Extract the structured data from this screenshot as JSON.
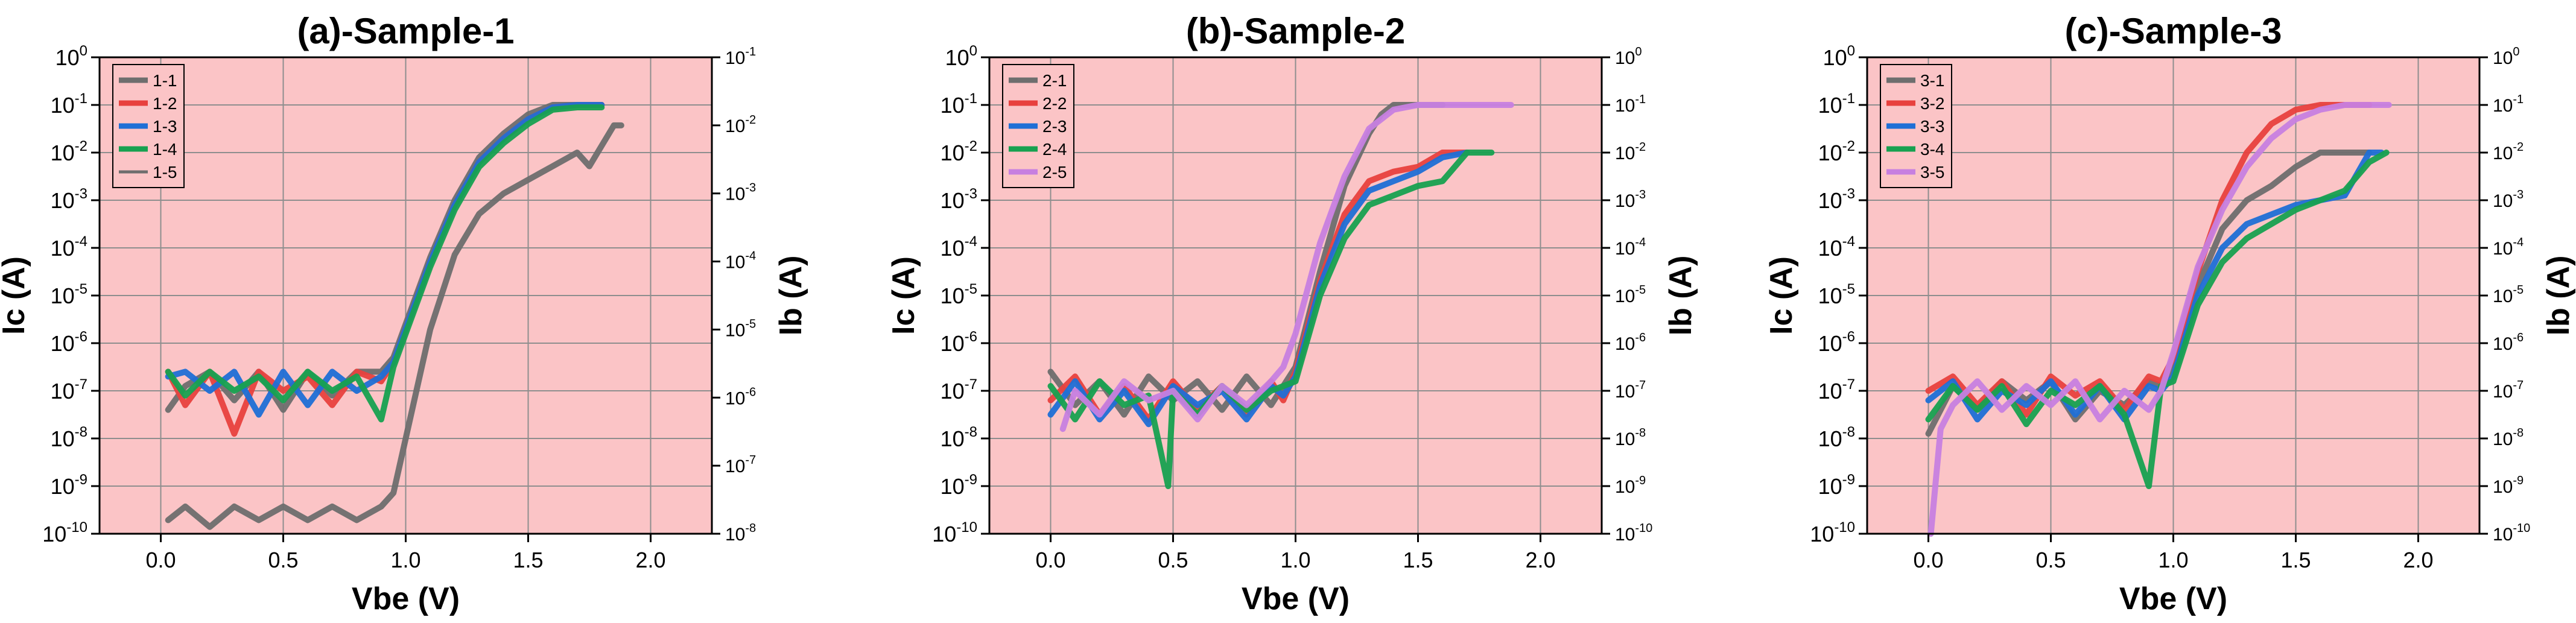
{
  "figure": {
    "panels": [
      "(a)-Sample-1",
      "(b)-Sample-2",
      "(c)-Sample-3"
    ]
  },
  "chart_data": [
    {
      "type": "line",
      "title": "(a)-Sample-1",
      "xlabel": "Vbe (V)",
      "ylabel": "Ic (A)",
      "y2label": "Ib (A)",
      "xlim": [
        -0.25,
        2.25
      ],
      "xticks": [
        "0.0",
        "0.5",
        "1.0",
        "1.5",
        "2.0"
      ],
      "xtick_values": [
        0,
        0.5,
        1.0,
        1.5,
        2.0
      ],
      "ylim_exp": [
        -10,
        0
      ],
      "y2lim_exp": [
        -8,
        -1
      ],
      "yscale": "log",
      "grid": true,
      "legend_position": "top-left",
      "background_color": "#fbc4c6",
      "series": [
        {
          "name": "1-1",
          "axis": "left",
          "color": "#6e6e6e",
          "x": [
            0.03,
            0.1,
            0.2,
            0.3,
            0.4,
            0.5,
            0.6,
            0.7,
            0.8,
            0.9,
            0.95,
            1.0,
            1.1,
            1.2,
            1.3,
            1.4,
            1.5,
            1.6,
            1.7,
            1.8
          ],
          "y_exp": [
            -7.4,
            -6.9,
            -6.6,
            -7.2,
            -6.6,
            -7.4,
            -6.6,
            -7.1,
            -6.6,
            -6.6,
            -6.3,
            -5.6,
            -4.2,
            -3.0,
            -2.1,
            -1.6,
            -1.2,
            -1.0,
            -1.0,
            -1.0
          ]
        },
        {
          "name": "1-2",
          "axis": "left",
          "color": "#e8413e",
          "x": [
            0.03,
            0.1,
            0.2,
            0.3,
            0.4,
            0.5,
            0.6,
            0.7,
            0.8,
            0.9,
            0.95,
            1.0,
            1.1,
            1.2,
            1.3,
            1.4,
            1.5,
            1.6,
            1.7,
            1.8
          ],
          "y_exp": [
            -6.6,
            -7.3,
            -6.6,
            -7.9,
            -6.6,
            -7.0,
            -6.7,
            -7.3,
            -6.6,
            -6.8,
            -6.4,
            -5.7,
            -4.3,
            -3.1,
            -2.2,
            -1.7,
            -1.3,
            -1.05,
            -1.0,
            -1.0
          ]
        },
        {
          "name": "1-3",
          "axis": "left",
          "color": "#1f6fd6",
          "x": [
            0.03,
            0.1,
            0.2,
            0.3,
            0.4,
            0.5,
            0.6,
            0.7,
            0.8,
            0.9,
            0.95,
            1.0,
            1.1,
            1.2,
            1.3,
            1.4,
            1.5,
            1.6,
            1.7,
            1.8
          ],
          "y_exp": [
            -6.7,
            -6.6,
            -7.0,
            -6.6,
            -7.5,
            -6.6,
            -7.3,
            -6.6,
            -7.0,
            -6.7,
            -6.4,
            -5.7,
            -4.3,
            -3.1,
            -2.2,
            -1.7,
            -1.3,
            -1.05,
            -1.0,
            -1.0
          ]
        },
        {
          "name": "1-4",
          "axis": "left",
          "color": "#17a150",
          "x": [
            0.03,
            0.1,
            0.2,
            0.3,
            0.4,
            0.5,
            0.6,
            0.7,
            0.8,
            0.9,
            0.95,
            1.0,
            1.1,
            1.2,
            1.3,
            1.4,
            1.5,
            1.6,
            1.7,
            1.8
          ],
          "y_exp": [
            -6.6,
            -7.1,
            -6.6,
            -7.0,
            -6.7,
            -7.2,
            -6.6,
            -7.0,
            -6.7,
            -7.6,
            -6.5,
            -5.8,
            -4.4,
            -3.2,
            -2.3,
            -1.8,
            -1.4,
            -1.1,
            -1.05,
            -1.05
          ]
        },
        {
          "name": "1-5",
          "axis": "right",
          "color": "#6e6e6e",
          "x": [
            0.03,
            0.1,
            0.2,
            0.3,
            0.4,
            0.5,
            0.6,
            0.7,
            0.8,
            0.9,
            0.95,
            1.0,
            1.1,
            1.2,
            1.3,
            1.4,
            1.5,
            1.6,
            1.7,
            1.75,
            1.8,
            1.85,
            1.88
          ],
          "y_exp": [
            -7.8,
            -7.6,
            -7.9,
            -7.6,
            -7.8,
            -7.6,
            -7.8,
            -7.6,
            -7.8,
            -7.6,
            -7.4,
            -6.6,
            -5.0,
            -3.9,
            -3.3,
            -3.0,
            -2.8,
            -2.6,
            -2.4,
            -2.6,
            -2.3,
            -2.0,
            -2.0
          ]
        }
      ]
    },
    {
      "type": "line",
      "title": "(b)-Sample-2",
      "xlabel": "Vbe (V)",
      "ylabel": "Ic (A)",
      "y2label": "Ib (A)",
      "xlim": [
        -0.25,
        2.25
      ],
      "xticks": [
        "0.0",
        "0.5",
        "1.0",
        "1.5",
        "2.0"
      ],
      "xtick_values": [
        0,
        0.5,
        1.0,
        1.5,
        2.0
      ],
      "ylim_exp": [
        -10,
        0
      ],
      "y2lim_exp": [
        -10,
        0
      ],
      "yscale": "log",
      "grid": true,
      "legend_position": "top-left",
      "background_color": "#fbc4c6",
      "series": [
        {
          "name": "2-1",
          "axis": "left",
          "color": "#6e6e6e",
          "x": [
            0.0,
            0.1,
            0.2,
            0.3,
            0.4,
            0.5,
            0.6,
            0.7,
            0.8,
            0.9,
            0.95,
            1.0,
            1.1,
            1.2,
            1.3,
            1.35,
            1.4,
            1.5,
            1.6
          ],
          "y_exp": [
            -6.6,
            -7.3,
            -6.8,
            -7.5,
            -6.7,
            -7.2,
            -6.8,
            -7.4,
            -6.7,
            -7.3,
            -6.9,
            -6.5,
            -4.5,
            -2.7,
            -1.6,
            -1.2,
            -1.0,
            -1.0,
            -1.0
          ]
        },
        {
          "name": "2-2",
          "axis": "left",
          "color": "#e8413e",
          "x": [
            0.0,
            0.1,
            0.2,
            0.3,
            0.4,
            0.5,
            0.6,
            0.7,
            0.8,
            0.9,
            0.95,
            1.0,
            1.1,
            1.2,
            1.3,
            1.4,
            1.5,
            1.6,
            1.7
          ],
          "y_exp": [
            -7.2,
            -6.7,
            -7.5,
            -6.9,
            -7.6,
            -6.8,
            -7.4,
            -6.9,
            -7.5,
            -6.8,
            -7.2,
            -6.6,
            -4.7,
            -3.3,
            -2.6,
            -2.4,
            -2.3,
            -2.0,
            -2.0
          ]
        },
        {
          "name": "2-3",
          "axis": "left",
          "color": "#1f6fd6",
          "x": [
            0.0,
            0.1,
            0.2,
            0.3,
            0.4,
            0.5,
            0.6,
            0.7,
            0.8,
            0.9,
            0.95,
            1.0,
            1.1,
            1.2,
            1.3,
            1.4,
            1.5,
            1.6,
            1.7
          ],
          "y_exp": [
            -7.5,
            -6.8,
            -7.6,
            -7.0,
            -7.7,
            -6.9,
            -7.3,
            -7.0,
            -7.6,
            -6.9,
            -7.1,
            -6.7,
            -4.8,
            -3.5,
            -2.8,
            -2.6,
            -2.4,
            -2.1,
            -2.0
          ]
        },
        {
          "name": "2-4",
          "axis": "left",
          "color": "#17a150",
          "x": [
            0.0,
            0.1,
            0.2,
            0.3,
            0.4,
            0.48,
            0.5,
            0.6,
            0.7,
            0.8,
            0.9,
            0.95,
            1.0,
            1.1,
            1.2,
            1.3,
            1.4,
            1.5,
            1.6,
            1.7,
            1.8
          ],
          "y_exp": [
            -6.9,
            -7.6,
            -6.8,
            -7.3,
            -7.1,
            -9.0,
            -7.0,
            -7.5,
            -6.9,
            -7.4,
            -7.0,
            -6.9,
            -6.8,
            -5.0,
            -3.8,
            -3.1,
            -2.9,
            -2.7,
            -2.6,
            -2.0,
            -2.0
          ]
        },
        {
          "name": "2-5",
          "axis": "left",
          "color": "#c77fe0",
          "x": [
            0.05,
            0.1,
            0.2,
            0.3,
            0.4,
            0.5,
            0.6,
            0.7,
            0.8,
            0.9,
            0.95,
            1.0,
            1.1,
            1.2,
            1.3,
            1.4,
            1.5,
            1.6,
            1.7,
            1.88
          ],
          "y_exp": [
            -7.8,
            -7.0,
            -7.5,
            -6.8,
            -7.2,
            -7.0,
            -7.6,
            -6.9,
            -7.3,
            -6.8,
            -6.5,
            -5.8,
            -3.9,
            -2.5,
            -1.5,
            -1.1,
            -1.0,
            -1.0,
            -1.0,
            -1.0
          ]
        }
      ]
    },
    {
      "type": "line",
      "title": "(c)-Sample-3",
      "xlabel": "Vbe (V)",
      "ylabel": "Ic (A)",
      "y2label": "Ib (A)",
      "xlim": [
        -0.25,
        2.25
      ],
      "xticks": [
        "0.0",
        "0.5",
        "1.0",
        "1.5",
        "2.0"
      ],
      "xtick_values": [
        0,
        0.5,
        1.0,
        1.5,
        2.0
      ],
      "ylim_exp": [
        -10,
        0
      ],
      "y2lim_exp": [
        -10,
        0
      ],
      "yscale": "log",
      "grid": true,
      "legend_position": "top-left",
      "background_color": "#fbc4c6",
      "series": [
        {
          "name": "3-1",
          "axis": "left",
          "color": "#6e6e6e",
          "x": [
            0.0,
            0.1,
            0.2,
            0.3,
            0.4,
            0.5,
            0.6,
            0.7,
            0.8,
            0.9,
            0.95,
            1.0,
            1.1,
            1.2,
            1.3,
            1.4,
            1.5,
            1.6,
            1.7,
            1.8
          ],
          "y_exp": [
            -7.9,
            -6.9,
            -7.4,
            -6.8,
            -7.2,
            -6.8,
            -7.6,
            -7.0,
            -7.3,
            -6.8,
            -6.9,
            -6.5,
            -4.8,
            -3.6,
            -3.0,
            -2.7,
            -2.3,
            -2.0,
            -2.0,
            -2.0
          ]
        },
        {
          "name": "3-2",
          "axis": "left",
          "color": "#e8413e",
          "x": [
            0.0,
            0.1,
            0.2,
            0.3,
            0.4,
            0.5,
            0.6,
            0.7,
            0.8,
            0.9,
            0.95,
            1.0,
            1.1,
            1.2,
            1.3,
            1.4,
            1.5,
            1.6,
            1.7,
            1.8
          ],
          "y_exp": [
            -7.0,
            -6.7,
            -7.3,
            -6.8,
            -7.5,
            -6.7,
            -7.1,
            -6.8,
            -7.4,
            -6.7,
            -6.8,
            -6.3,
            -4.5,
            -3.0,
            -2.0,
            -1.4,
            -1.1,
            -1.0,
            -1.0,
            -1.0
          ]
        },
        {
          "name": "3-3",
          "axis": "left",
          "color": "#1f6fd6",
          "x": [
            0.0,
            0.1,
            0.2,
            0.3,
            0.4,
            0.5,
            0.6,
            0.7,
            0.8,
            0.9,
            0.95,
            1.0,
            1.1,
            1.2,
            1.3,
            1.4,
            1.5,
            1.6,
            1.7,
            1.8,
            1.85
          ],
          "y_exp": [
            -7.2,
            -6.8,
            -7.6,
            -7.0,
            -7.3,
            -6.8,
            -7.5,
            -6.9,
            -7.6,
            -6.9,
            -7.0,
            -6.7,
            -5.0,
            -4.0,
            -3.5,
            -3.3,
            -3.1,
            -3.0,
            -2.9,
            -2.0,
            -2.0
          ]
        },
        {
          "name": "3-4",
          "axis": "left",
          "color": "#17a150",
          "x": [
            0.0,
            0.1,
            0.2,
            0.3,
            0.4,
            0.5,
            0.6,
            0.7,
            0.8,
            0.9,
            0.95,
            1.0,
            1.1,
            1.2,
            1.3,
            1.4,
            1.5,
            1.6,
            1.7,
            1.8,
            1.87
          ],
          "y_exp": [
            -7.6,
            -6.9,
            -7.4,
            -6.9,
            -7.7,
            -7.0,
            -7.3,
            -6.9,
            -7.5,
            -9.0,
            -6.9,
            -6.8,
            -5.2,
            -4.3,
            -3.8,
            -3.5,
            -3.2,
            -3.0,
            -2.8,
            -2.2,
            -2.0
          ]
        },
        {
          "name": "3-5",
          "axis": "left",
          "color": "#c77fe0",
          "x": [
            0.01,
            0.05,
            0.1,
            0.2,
            0.3,
            0.4,
            0.5,
            0.6,
            0.7,
            0.8,
            0.9,
            0.95,
            1.0,
            1.1,
            1.2,
            1.3,
            1.4,
            1.5,
            1.6,
            1.7,
            1.8,
            1.88
          ],
          "y_exp": [
            -10.0,
            -7.8,
            -7.3,
            -6.8,
            -7.4,
            -6.9,
            -7.3,
            -6.8,
            -7.6,
            -7.0,
            -7.4,
            -7.0,
            -6.2,
            -4.4,
            -3.2,
            -2.3,
            -1.7,
            -1.3,
            -1.1,
            -1.0,
            -1.0,
            -1.0
          ]
        }
      ]
    }
  ]
}
